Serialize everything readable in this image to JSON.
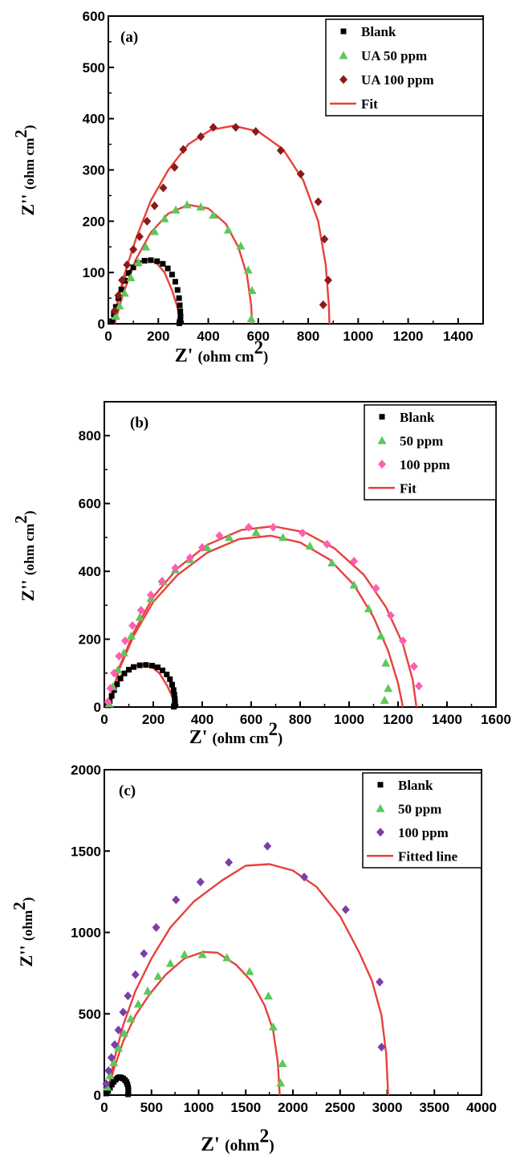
{
  "chart_data": [
    {
      "type": "scatter",
      "panel_label": "(a)",
      "xlabel": {
        "main": "Z'",
        "unit_prefix": "(ohm cm",
        "sup": "2",
        "unit_suffix": ")"
      },
      "ylabel": {
        "main": "Z''",
        "unit_prefix": "(ohm cm",
        "sup": "2",
        "unit_suffix": ")"
      },
      "xlim": [
        0,
        1500
      ],
      "ylim": [
        0,
        600
      ],
      "xticks": [
        0,
        200,
        400,
        600,
        800,
        1000,
        1200,
        1400
      ],
      "yticks": [
        0,
        100,
        200,
        300,
        400,
        500,
        600
      ],
      "legend_position": "top-right",
      "series": [
        {
          "name": "Blank",
          "marker": "square",
          "color": "#000000",
          "x": [
            15,
            22,
            30,
            40,
            52,
            66,
            82,
            100,
            120,
            145,
            170,
            195,
            218,
            238,
            255,
            268,
            277,
            283,
            286,
            288,
            289,
            288,
            286,
            284
          ],
          "y": [
            5,
            18,
            33,
            50,
            67,
            84,
            99,
            110,
            118,
            123,
            124,
            122,
            117,
            108,
            96,
            82,
            66,
            50,
            36,
            24,
            14,
            8,
            4,
            1
          ]
        },
        {
          "name": "UA 50 ppm",
          "marker": "triangle",
          "color": "#5cc85c",
          "x": [
            30,
            45,
            65,
            90,
            120,
            150,
            185,
            225,
            270,
            315,
            370,
            420,
            480,
            530,
            560,
            575,
            572
          ],
          "y": [
            15,
            35,
            60,
            90,
            120,
            150,
            180,
            205,
            222,
            232,
            228,
            212,
            183,
            152,
            105,
            65,
            10
          ]
        },
        {
          "name": "UA 100 ppm",
          "marker": "diamond",
          "color": "#8b1a1a",
          "x": [
            25,
            40,
            55,
            75,
            100,
            125,
            155,
            185,
            220,
            265,
            300,
            370,
            420,
            510,
            590,
            690,
            770,
            840,
            865,
            880,
            860
          ],
          "y": [
            25,
            55,
            85,
            115,
            145,
            170,
            200,
            230,
            265,
            305,
            340,
            365,
            383,
            383,
            375,
            338,
            292,
            238,
            165,
            85,
            37
          ]
        },
        {
          "name": "Fit",
          "marker": "line",
          "color": "#e8413c",
          "curves": [
            {
              "x": [
                20,
                40,
                70,
                110,
                150,
                190,
                225,
                255,
                275,
                285,
                290
              ],
              "y": [
                0,
                50,
                95,
                118,
                126,
                120,
                100,
                65,
                35,
                12,
                0
              ]
            },
            {
              "x": [
                25,
                60,
                110,
                170,
                240,
                320,
                400,
                470,
                520,
                555,
                572,
                575
              ],
              "y": [
                0,
                60,
                125,
                178,
                215,
                232,
                225,
                195,
                150,
                95,
                35,
                0
              ]
            },
            {
              "x": [
                20,
                60,
                110,
                170,
                240,
                320,
                410,
                500,
                600,
                700,
                780,
                840,
                870,
                882,
                885
              ],
              "y": [
                0,
                90,
                165,
                240,
                300,
                350,
                378,
                386,
                375,
                340,
                280,
                200,
                115,
                40,
                0
              ]
            }
          ]
        }
      ]
    },
    {
      "type": "scatter",
      "panel_label": "(b)",
      "xlabel": {
        "main": "Z'",
        "unit_prefix": "(ohm cm",
        "sup": "2",
        "unit_suffix": ")"
      },
      "ylabel": {
        "main": "Z''",
        "unit_prefix": "(ohm cm",
        "sup": "2",
        "unit_suffix": ")"
      },
      "xlim": [
        0,
        1600
      ],
      "ylim": [
        0,
        900
      ],
      "xticks": [
        0,
        200,
        400,
        600,
        800,
        1000,
        1200,
        1400,
        1600
      ],
      "yticks": [
        0,
        200,
        400,
        600,
        800
      ],
      "legend_position": "top-right",
      "series": [
        {
          "name": "Blank",
          "marker": "square",
          "color": "#000000",
          "x": [
            15,
            22,
            30,
            40,
            52,
            66,
            82,
            100,
            120,
            145,
            170,
            195,
            218,
            238,
            255,
            268,
            277,
            283,
            286,
            288,
            289,
            288,
            286,
            284
          ],
          "y": [
            5,
            18,
            33,
            50,
            67,
            84,
            99,
            110,
            118,
            123,
            124,
            122,
            117,
            108,
            96,
            82,
            66,
            50,
            36,
            24,
            14,
            8,
            4,
            1
          ]
        },
        {
          "name": "50 ppm",
          "marker": "triangle",
          "color": "#5cc85c",
          "x": [
            20,
            35,
            55,
            80,
            110,
            145,
            190,
            240,
            290,
            350,
            420,
            510,
            620,
            730,
            840,
            930,
            1020,
            1080,
            1130,
            1150,
            1160,
            1145
          ],
          "y": [
            10,
            60,
            110,
            160,
            210,
            265,
            320,
            370,
            405,
            435,
            470,
            500,
            515,
            500,
            475,
            425,
            360,
            290,
            210,
            130,
            55,
            20
          ]
        },
        {
          "name": "100 ppm",
          "marker": "diamond",
          "color": "#ff5fb0",
          "x": [
            15,
            25,
            40,
            60,
            85,
            115,
            150,
            190,
            235,
            290,
            350,
            400,
            470,
            590,
            690,
            810,
            910,
            1020,
            1110,
            1170,
            1220,
            1265,
            1285
          ],
          "y": [
            15,
            55,
            100,
            150,
            195,
            240,
            285,
            330,
            370,
            410,
            440,
            470,
            505,
            530,
            530,
            513,
            480,
            430,
            350,
            270,
            195,
            120,
            62
          ]
        },
        {
          "name": "Fit",
          "marker": "line",
          "color": "#e8413c",
          "curves": [
            {
              "x": [
                20,
                40,
                70,
                110,
                150,
                190,
                225,
                255,
                275,
                285,
                290
              ],
              "y": [
                0,
                50,
                95,
                118,
                126,
                120,
                100,
                65,
                35,
                12,
                0
              ]
            },
            {
              "x": [
                20,
                60,
                120,
                200,
                300,
                420,
                550,
                680,
                800,
                920,
                1020,
                1100,
                1160,
                1200,
                1220
              ],
              "y": [
                0,
                110,
                210,
                310,
                390,
                455,
                495,
                505,
                485,
                435,
                360,
                265,
                165,
                70,
                0
              ]
            },
            {
              "x": [
                20,
                60,
                120,
                200,
                300,
                420,
                560,
                690,
                820,
                940,
                1060,
                1150,
                1220,
                1260,
                1275
              ],
              "y": [
                0,
                115,
                220,
                325,
                410,
                478,
                522,
                533,
                515,
                468,
                390,
                295,
                185,
                80,
                0
              ]
            }
          ]
        }
      ]
    },
    {
      "type": "scatter",
      "panel_label": "(c)",
      "xlabel": {
        "main": "Z'",
        "unit_prefix": "(ohm",
        "sup": "2",
        "unit_suffix": ")"
      },
      "ylabel": {
        "main": "Z''",
        "unit_prefix": "(ohm",
        "sup": "2",
        "unit_suffix": ")"
      },
      "xlim": [
        0,
        4000
      ],
      "ylim": [
        0,
        2000
      ],
      "xticks": [
        0,
        500,
        1000,
        1500,
        2000,
        2500,
        3000,
        3500,
        4000
      ],
      "yticks": [
        0,
        500,
        1000,
        1500,
        2000
      ],
      "legend_position": "top-right",
      "series": [
        {
          "name": "Blank",
          "marker": "square",
          "color": "#000000",
          "x": [
            20,
            40,
            60,
            80,
            100,
            120,
            140,
            160,
            180,
            200,
            220,
            235,
            245,
            252,
            255,
            255,
            252
          ],
          "y": [
            10,
            25,
            45,
            65,
            82,
            95,
            105,
            110,
            108,
            102,
            92,
            80,
            65,
            48,
            32,
            18,
            5
          ]
        },
        {
          "name": "50 ppm",
          "marker": "triangle",
          "color": "#5cc85c",
          "x": [
            30,
            60,
            100,
            150,
            210,
            280,
            360,
            460,
            570,
            700,
            850,
            1040,
            1300,
            1540,
            1740,
            1790,
            1890,
            1870
          ],
          "y": [
            50,
            120,
            200,
            290,
            380,
            470,
            560,
            640,
            730,
            810,
            865,
            865,
            845,
            760,
            610,
            420,
            195,
            75
          ]
        },
        {
          "name": "100 ppm",
          "marker": "diamond",
          "color": "#7b3fa8",
          "x": [
            20,
            45,
            75,
            110,
            150,
            200,
            250,
            330,
            420,
            550,
            760,
            1020,
            1320,
            1730,
            2120,
            2560,
            2920,
            2940
          ],
          "y": [
            70,
            150,
            230,
            310,
            400,
            510,
            610,
            740,
            870,
            1030,
            1200,
            1310,
            1430,
            1530,
            1340,
            1140,
            695,
            295
          ]
        },
        {
          "name": "Fitted line",
          "marker": "line",
          "color": "#e8413c",
          "curves": [
            {
              "x": [
                30,
                60,
                100,
                140,
                180,
                215,
                240,
                255,
                260
              ],
              "y": [
                0,
                70,
                100,
                112,
                108,
                90,
                60,
                25,
                0
              ]
            },
            {
              "x": [
                30,
                100,
                200,
                330,
                480,
                650,
                850,
                1050,
                1200,
                1400,
                1560,
                1700,
                1790,
                1840,
                1860
              ],
              "y": [
                0,
                160,
                330,
                490,
                620,
                740,
                840,
                880,
                875,
                800,
                700,
                550,
                400,
                200,
                0
              ]
            },
            {
              "x": [
                30,
                100,
                200,
                330,
                500,
                700,
                950,
                1250,
                1500,
                1750,
                2000,
                2250,
                2500,
                2700,
                2840,
                2940,
                2990,
                3010
              ],
              "y": [
                0,
                210,
                430,
                640,
                840,
                1030,
                1190,
                1320,
                1410,
                1420,
                1380,
                1280,
                1100,
                880,
                700,
                490,
                250,
                0
              ]
            }
          ]
        }
      ]
    }
  ]
}
